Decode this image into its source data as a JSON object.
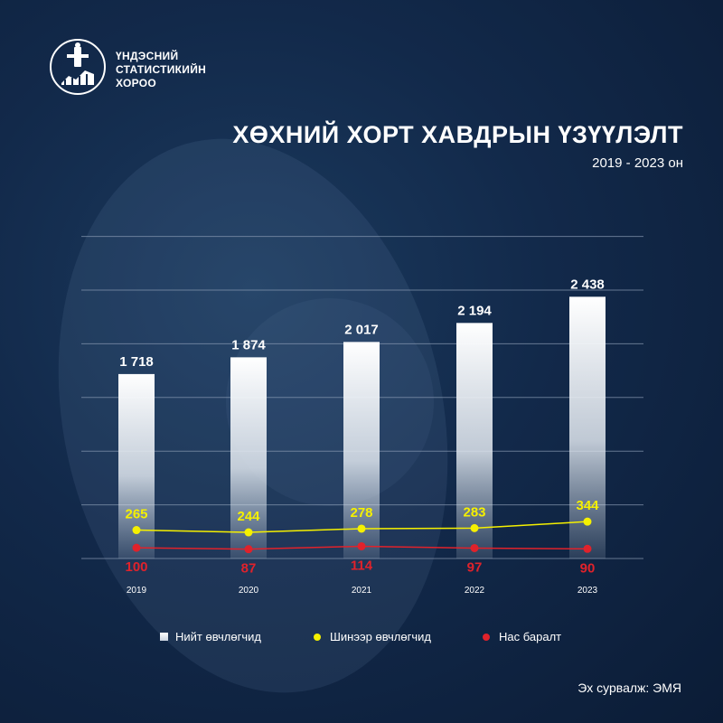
{
  "org": {
    "line1": "ҮНДЭСНИЙ",
    "line2": "СТАТИСТИКИЙН",
    "line3": "ХОРОО"
  },
  "title": "ХӨХНИЙ ХОРТ ХАВДРЫН ҮЗҮҮЛЭЛТ",
  "subtitle": "2019 - 2023 он",
  "source": "Эх сурвалж: ЭМЯ",
  "colors": {
    "background": "#0d2140",
    "bar": "#ffffff",
    "new_cases": "#f5f000",
    "deaths": "#e0222b",
    "grid": "#8a9bb3"
  },
  "chart_data": {
    "type": "bar",
    "categories": [
      "2019",
      "2020",
      "2021",
      "2022",
      "2023"
    ],
    "series": [
      {
        "name": "Нийт өвчлөгчид",
        "type": "bar",
        "values": [
          1718,
          1874,
          2017,
          2194,
          2438
        ],
        "labels": [
          "1 718",
          "1 874",
          "2 017",
          "2 194",
          "2 438"
        ],
        "color": "#ffffff"
      },
      {
        "name": "Шинээр өвчлөгчид",
        "type": "line",
        "values": [
          265,
          244,
          278,
          283,
          344
        ],
        "labels": [
          "265",
          "244",
          "278",
          "283",
          "344"
        ],
        "color": "#f5f000"
      },
      {
        "name": "Нас баралт",
        "type": "line",
        "values": [
          100,
          87,
          114,
          97,
          90
        ],
        "labels": [
          "100",
          "87",
          "114",
          "97",
          "90"
        ],
        "color": "#e0222b"
      }
    ],
    "ylim": [
      0,
      3000
    ],
    "grid": true,
    "legend_position": "bottom"
  }
}
